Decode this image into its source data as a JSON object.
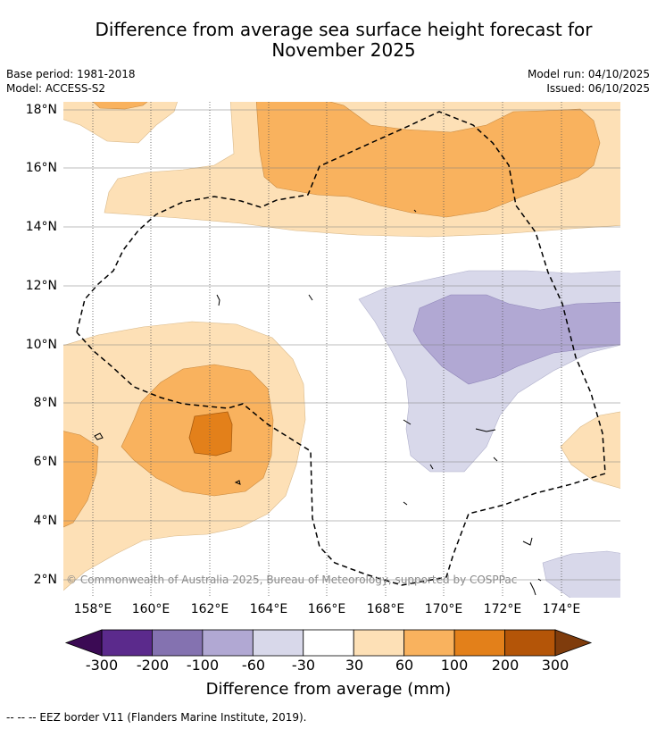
{
  "title_line1": "Difference from average sea surface height forecast for",
  "title_line2": "November 2025",
  "base_period": "Base period: 1981-2018",
  "model": "Model: ACCESS-S2",
  "model_run": "Model run: 04/10/2025",
  "issued": "Issued: 06/10/2025",
  "map": {
    "lat_labels": [
      "18°N",
      "16°N",
      "14°N",
      "12°N",
      "10°N",
      "8°N",
      "6°N",
      "4°N",
      "2°N"
    ],
    "lon_labels": [
      "158°E",
      "160°E",
      "162°E",
      "164°E",
      "166°E",
      "168°E",
      "170°E",
      "172°E",
      "174°E"
    ],
    "copyright": "© Commonwealth of Australia 2025, Bureau of Meteorology, supported by COSPPac"
  },
  "colorbar": {
    "ticks": [
      "-300",
      "-200",
      "-100",
      "-60",
      "-30",
      "30",
      "60",
      "100",
      "200",
      "300"
    ],
    "colors": [
      "#5b2a8c",
      "#8472b0",
      "#b1a8d3",
      "#d8d8ea",
      "#ffffff",
      "#fde0b6",
      "#f9b25e",
      "#e3801a",
      "#b45508"
    ],
    "under_color": "#3b0a54",
    "over_color": "#7f3c0c",
    "label": "Difference from average (mm)"
  },
  "legend_footer": "-- -- -- EEZ border V11 (Flanders Marine Institute, 2019).",
  "colors": {
    "light_orange": "#fde0b6",
    "orange": "#f9b25e",
    "dark_orange": "#e3801a",
    "light_purple": "#d8d8ea",
    "purple": "#b1a8d3"
  }
}
